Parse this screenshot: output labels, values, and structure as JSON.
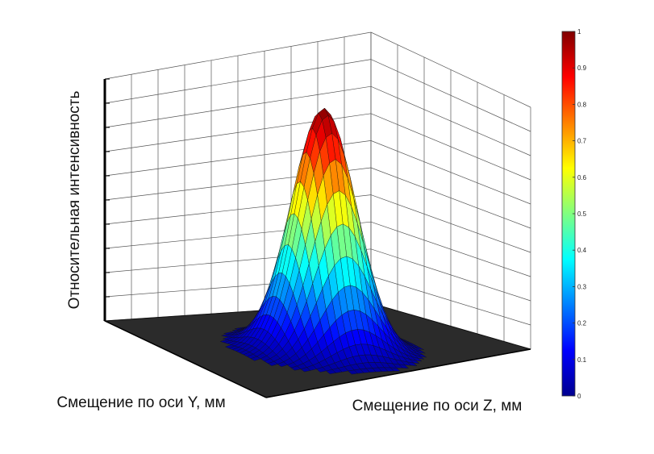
{
  "chart_data": {
    "type": "surface",
    "title": "",
    "xlabel": "Смещение по оси Y, мм",
    "ylabel": "Смещение по оси Z, мм",
    "zlabel": "Относительная интенсивность",
    "zlim": [
      0,
      1
    ],
    "grid": true,
    "surface": {
      "shape": "gaussian",
      "peak": 1.0,
      "baseline": 0.0
    },
    "colorbar": {
      "placement": "right",
      "colormap": "jet",
      "ticks": [
        "0",
        "0.1",
        "0.2",
        "0.3",
        "0.4",
        "0.5",
        "0.6",
        "0.7",
        "0.8",
        "0.9",
        "1"
      ],
      "colors": [
        "#00008f",
        "#0000ff",
        "#0080ff",
        "#00ffff",
        "#80ff80",
        "#ffff00",
        "#ff8000",
        "#ff0000",
        "#800000"
      ]
    },
    "floor_color": "#2b2b2b"
  }
}
